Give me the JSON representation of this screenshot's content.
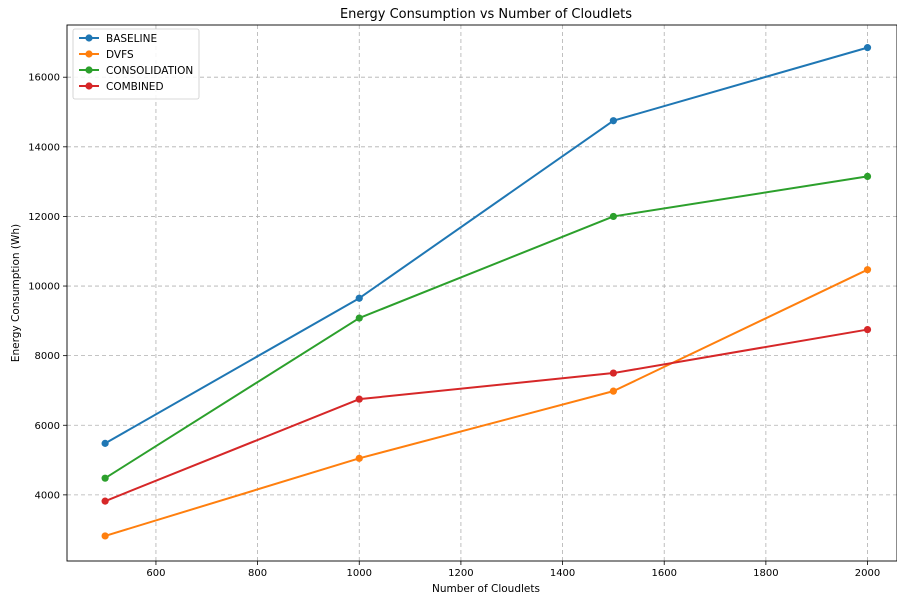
{
  "chart_data": {
    "type": "line",
    "title": "Energy Consumption vs Number of Cloudlets",
    "xlabel": "Number of Cloudlets",
    "ylabel": "Energy Consumption (Wh)",
    "x": [
      500,
      1000,
      1500,
      2000
    ],
    "xlim": [
      425,
      2058
    ],
    "ylim": [
      2100,
      17500
    ],
    "xticks": [
      600,
      800,
      1000,
      1200,
      1400,
      1600,
      1800,
      2000
    ],
    "yticks": [
      4000,
      6000,
      8000,
      10000,
      12000,
      14000,
      16000
    ],
    "grid": true,
    "legend_position": "top-left",
    "series": [
      {
        "name": "BASELINE",
        "color": "#1f77b4",
        "values": [
          5480,
          9650,
          14750,
          16850
        ]
      },
      {
        "name": "DVFS",
        "color": "#ff7f0e",
        "values": [
          2820,
          5050,
          6980,
          10470
        ]
      },
      {
        "name": "CONSOLIDATION",
        "color": "#2ca02c",
        "values": [
          4480,
          9080,
          12000,
          13150
        ]
      },
      {
        "name": "COMBINED",
        "color": "#d62728",
        "values": [
          3820,
          6750,
          7500,
          8750
        ]
      }
    ]
  }
}
